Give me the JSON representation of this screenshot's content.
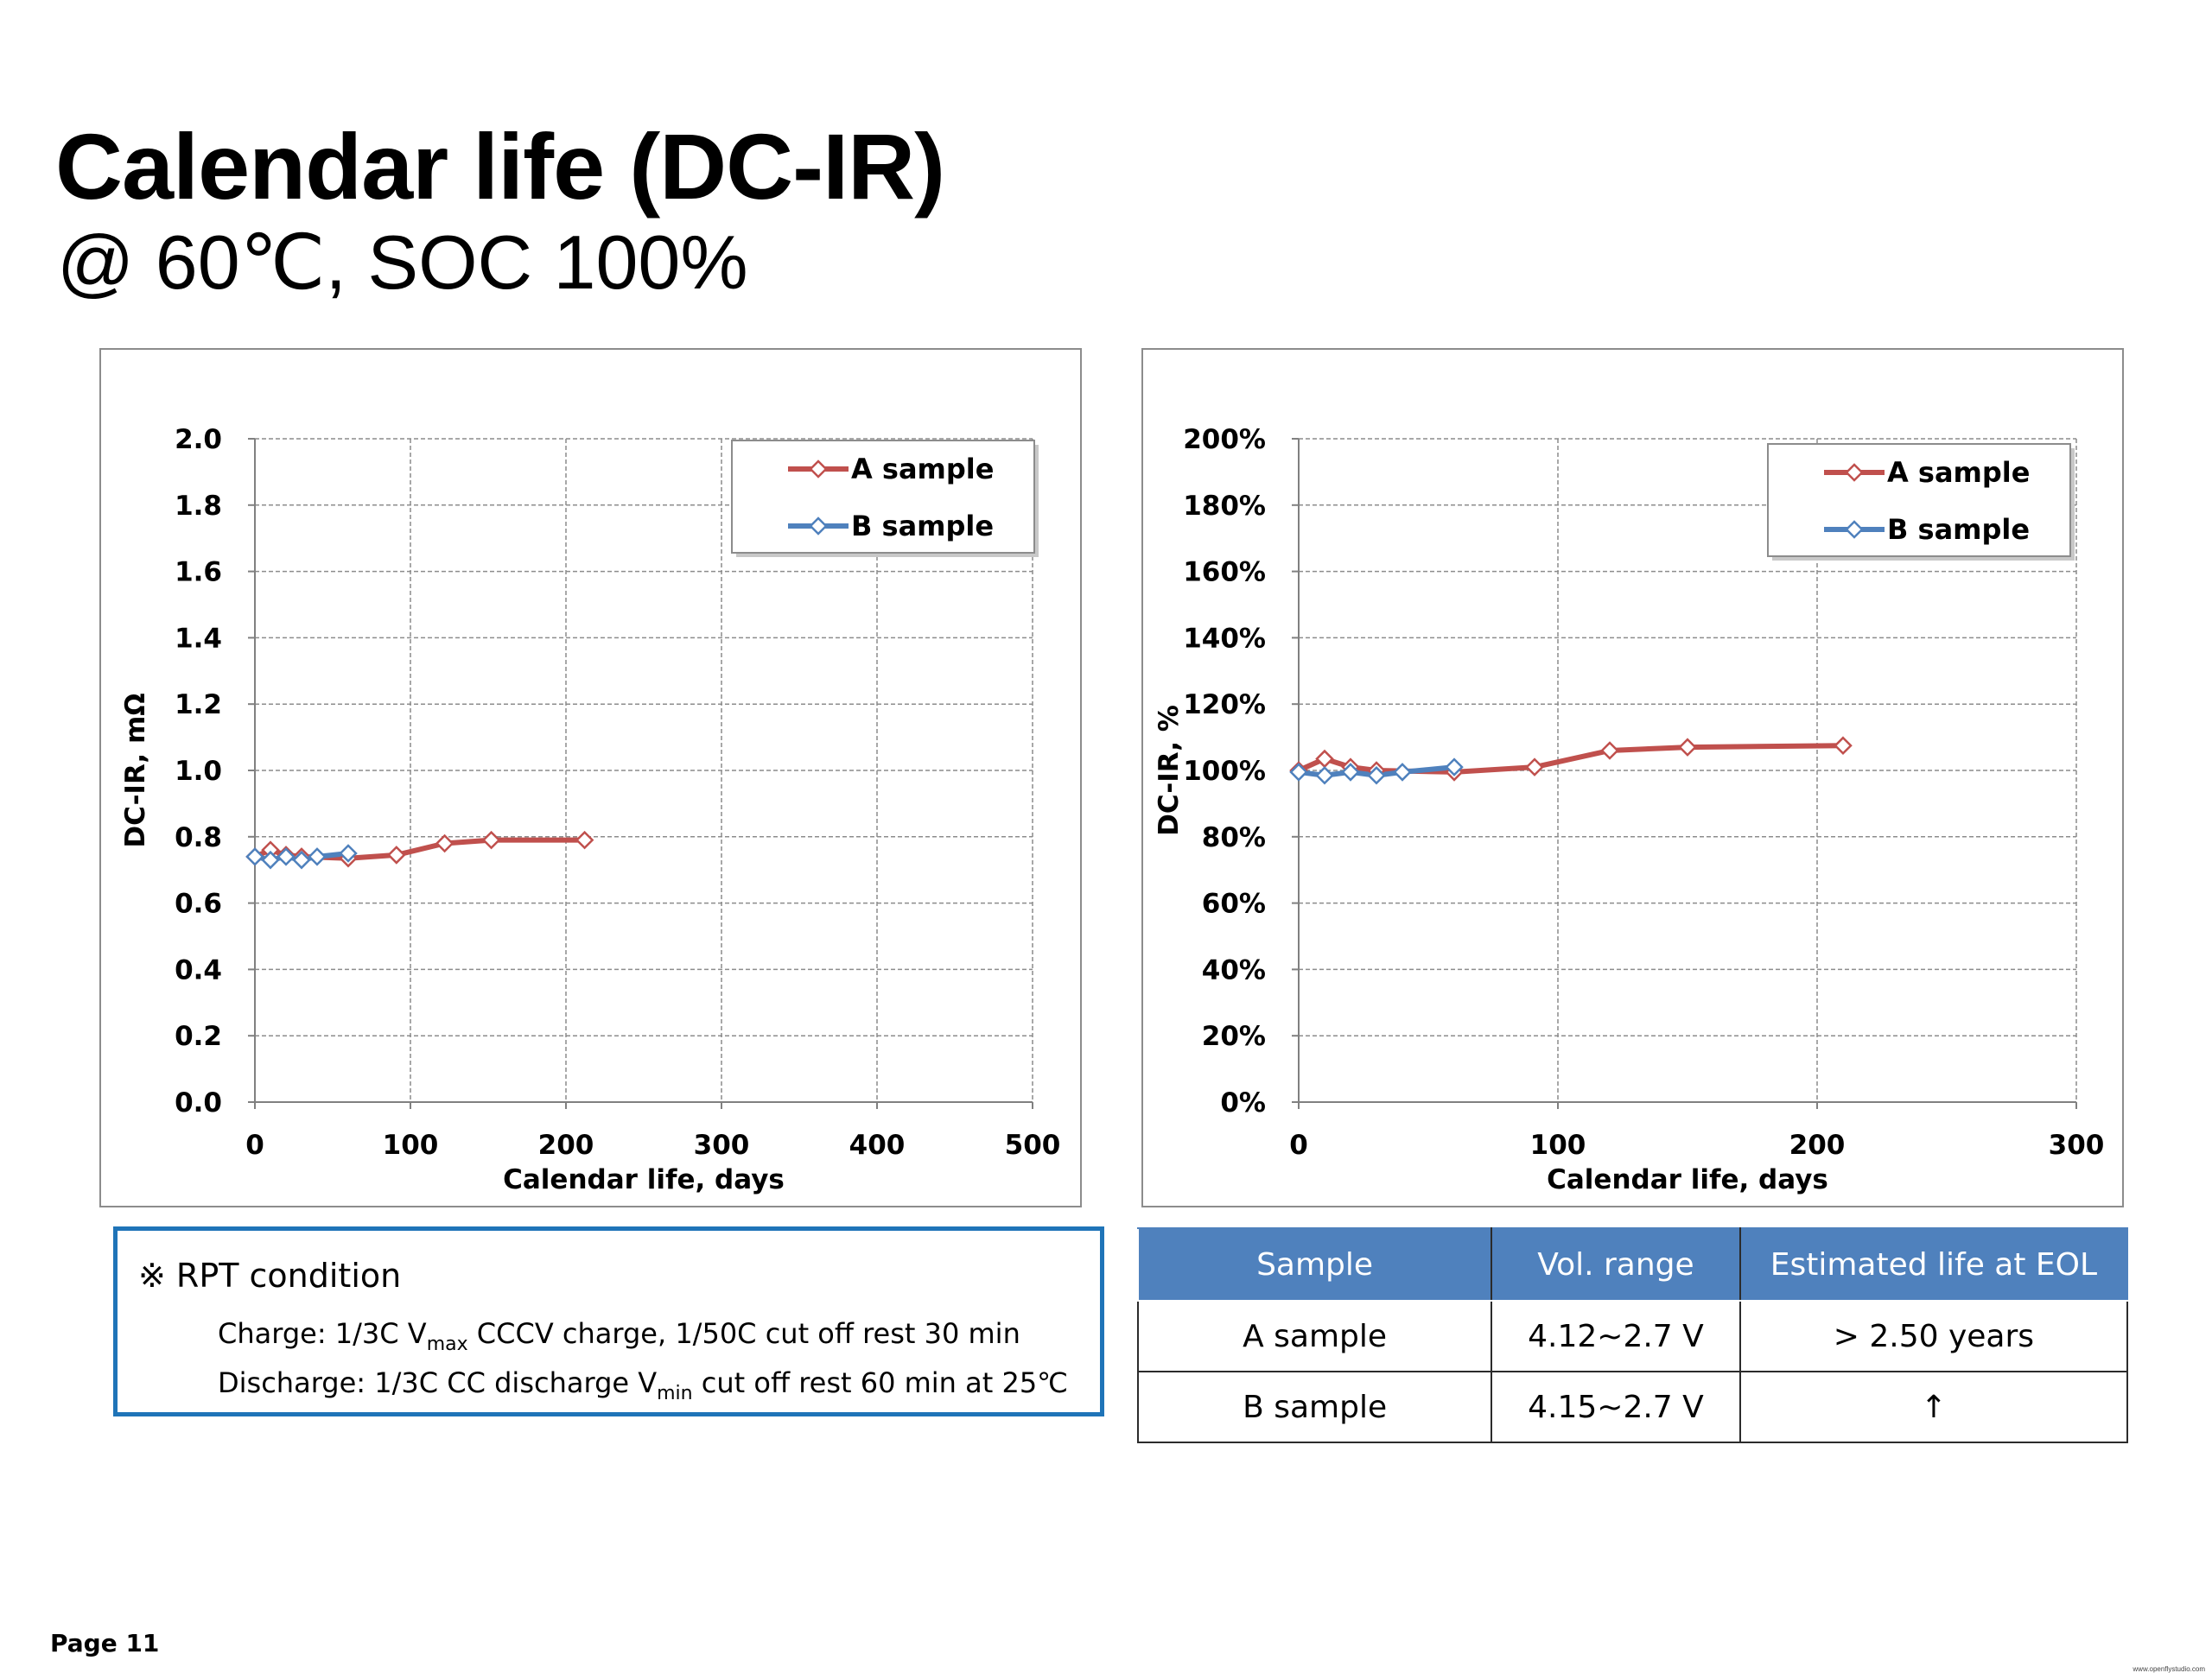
{
  "title": "Calendar life (DC-IR)",
  "subtitle": "@ 60℃, SOC 100%",
  "colors": {
    "series_a": "#c0504d",
    "series_b": "#4f81bd",
    "grid": "#8c8c8c",
    "rpt_border": "#1f74b8",
    "table_header": "#4f81bd"
  },
  "chart_data": [
    {
      "type": "line",
      "title": "",
      "xlabel": "Calendar life, days",
      "ylabel": "DC-IR, mΩ",
      "xlim": [
        0,
        500
      ],
      "ylim": [
        0,
        2.0
      ],
      "x_ticks": [
        0,
        100,
        200,
        300,
        400,
        500
      ],
      "x_tick_labels": [
        "0",
        "100",
        "200",
        "300",
        "400",
        "500"
      ],
      "y_ticks": [
        0,
        0.2,
        0.4,
        0.6,
        0.8,
        1.0,
        1.2,
        1.4,
        1.6,
        1.8,
        2.0
      ],
      "y_tick_labels": [
        "0.0",
        "0.2",
        "0.4",
        "0.6",
        "0.8",
        "1.0",
        "1.2",
        "1.4",
        "1.6",
        "1.8",
        "2.0"
      ],
      "grid": true,
      "legend": "top-right",
      "series": [
        {
          "name": "A sample",
          "color": "#c0504d",
          "x": [
            0,
            10,
            20,
            30,
            60,
            91,
            122,
            152,
            212
          ],
          "y": [
            0.74,
            0.76,
            0.745,
            0.74,
            0.735,
            0.745,
            0.78,
            0.79,
            0.79
          ]
        },
        {
          "name": "B sample",
          "color": "#4f81bd",
          "x": [
            0,
            10,
            20,
            30,
            40,
            60
          ],
          "y": [
            0.74,
            0.73,
            0.74,
            0.73,
            0.74,
            0.75
          ]
        }
      ]
    },
    {
      "type": "line",
      "title": "",
      "xlabel": "Calendar life, days",
      "ylabel": "DC-IR, %",
      "xlim": [
        0,
        300
      ],
      "ylim": [
        0,
        200
      ],
      "x_ticks": [
        0,
        100,
        200,
        300
      ],
      "x_tick_labels": [
        "0",
        "100",
        "200",
        "300"
      ],
      "y_ticks": [
        0,
        20,
        40,
        60,
        80,
        100,
        120,
        140,
        160,
        180,
        200
      ],
      "y_tick_labels": [
        "0%",
        "20%",
        "40%",
        "60%",
        "80%",
        "100%",
        "120%",
        "140%",
        "160%",
        "180%",
        "200%"
      ],
      "grid": true,
      "legend": "top-right",
      "series": [
        {
          "name": "A sample",
          "color": "#c0504d",
          "x": [
            0,
            10,
            20,
            30,
            60,
            91,
            120,
            150,
            210
          ],
          "y": [
            100,
            103.5,
            101,
            100,
            99.5,
            101,
            106,
            107,
            107.5
          ]
        },
        {
          "name": "B sample",
          "color": "#4f81bd",
          "x": [
            0,
            10,
            20,
            30,
            40,
            60
          ],
          "y": [
            99.5,
            98.5,
            99.5,
            98.5,
            99.5,
            101
          ]
        }
      ]
    }
  ],
  "rpt": {
    "title": "※ RPT condition",
    "line1_a": "Charge: 1/3C V",
    "line1_sub": "max",
    "line1_b": " CCCV charge, 1/50C cut off rest 30 min",
    "line2_a": "Discharge: 1/3C CC discharge V",
    "line2_sub": "min",
    "line2_b": " cut off  rest 60 min at 25℃"
  },
  "table": {
    "headers": [
      "Sample",
      "Vol. range",
      "Estimated life at EOL"
    ],
    "rows": [
      [
        "A sample",
        "4.12~2.7 V",
        "> 2.50 years"
      ],
      [
        "B sample",
        "4.15~2.7 V",
        "↑"
      ]
    ]
  },
  "page_label": "Page 11",
  "watermark": "www.openflystudio.com"
}
